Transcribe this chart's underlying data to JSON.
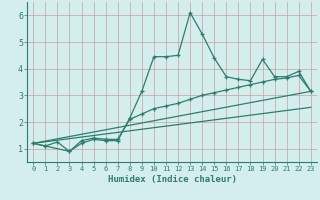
{
  "xlabel": "Humidex (Indice chaleur)",
  "bg_color": "#d4eeee",
  "line_color": "#2d7d6e",
  "grid_color": "#c0dede",
  "xlim": [
    -0.5,
    23.5
  ],
  "ylim": [
    0.5,
    6.5
  ],
  "xticks": [
    0,
    1,
    2,
    3,
    4,
    5,
    6,
    7,
    8,
    9,
    10,
    11,
    12,
    13,
    14,
    15,
    16,
    17,
    18,
    19,
    20,
    21,
    22,
    23
  ],
  "yticks": [
    1,
    2,
    3,
    4,
    5,
    6
  ],
  "series1_x": [
    0,
    1,
    2,
    3,
    4,
    5,
    6,
    7,
    8,
    9,
    10,
    11,
    12,
    13,
    14,
    15,
    16,
    17,
    18,
    19,
    20,
    21,
    22,
    23
  ],
  "series1_y": [
    1.2,
    1.1,
    1.25,
    0.9,
    1.2,
    1.35,
    1.3,
    1.3,
    2.15,
    3.15,
    4.45,
    4.45,
    4.5,
    6.1,
    5.3,
    4.4,
    3.7,
    3.6,
    3.55,
    4.35,
    3.7,
    3.7,
    3.9,
    3.15
  ],
  "series2_x": [
    0,
    1,
    3,
    4,
    5,
    6,
    7,
    8,
    9,
    10,
    11,
    12,
    13,
    14,
    15,
    16,
    17,
    18,
    19,
    20,
    21,
    22,
    23
  ],
  "series2_y": [
    1.2,
    1.1,
    0.9,
    1.3,
    1.4,
    1.35,
    1.35,
    2.1,
    2.3,
    2.5,
    2.6,
    2.7,
    2.85,
    3.0,
    3.1,
    3.2,
    3.3,
    3.4,
    3.5,
    3.6,
    3.65,
    3.75,
    3.15
  ],
  "series3_x": [
    0,
    23
  ],
  "series3_y": [
    1.2,
    3.15
  ],
  "series4_x": [
    0,
    23
  ],
  "series4_y": [
    1.2,
    2.55
  ]
}
